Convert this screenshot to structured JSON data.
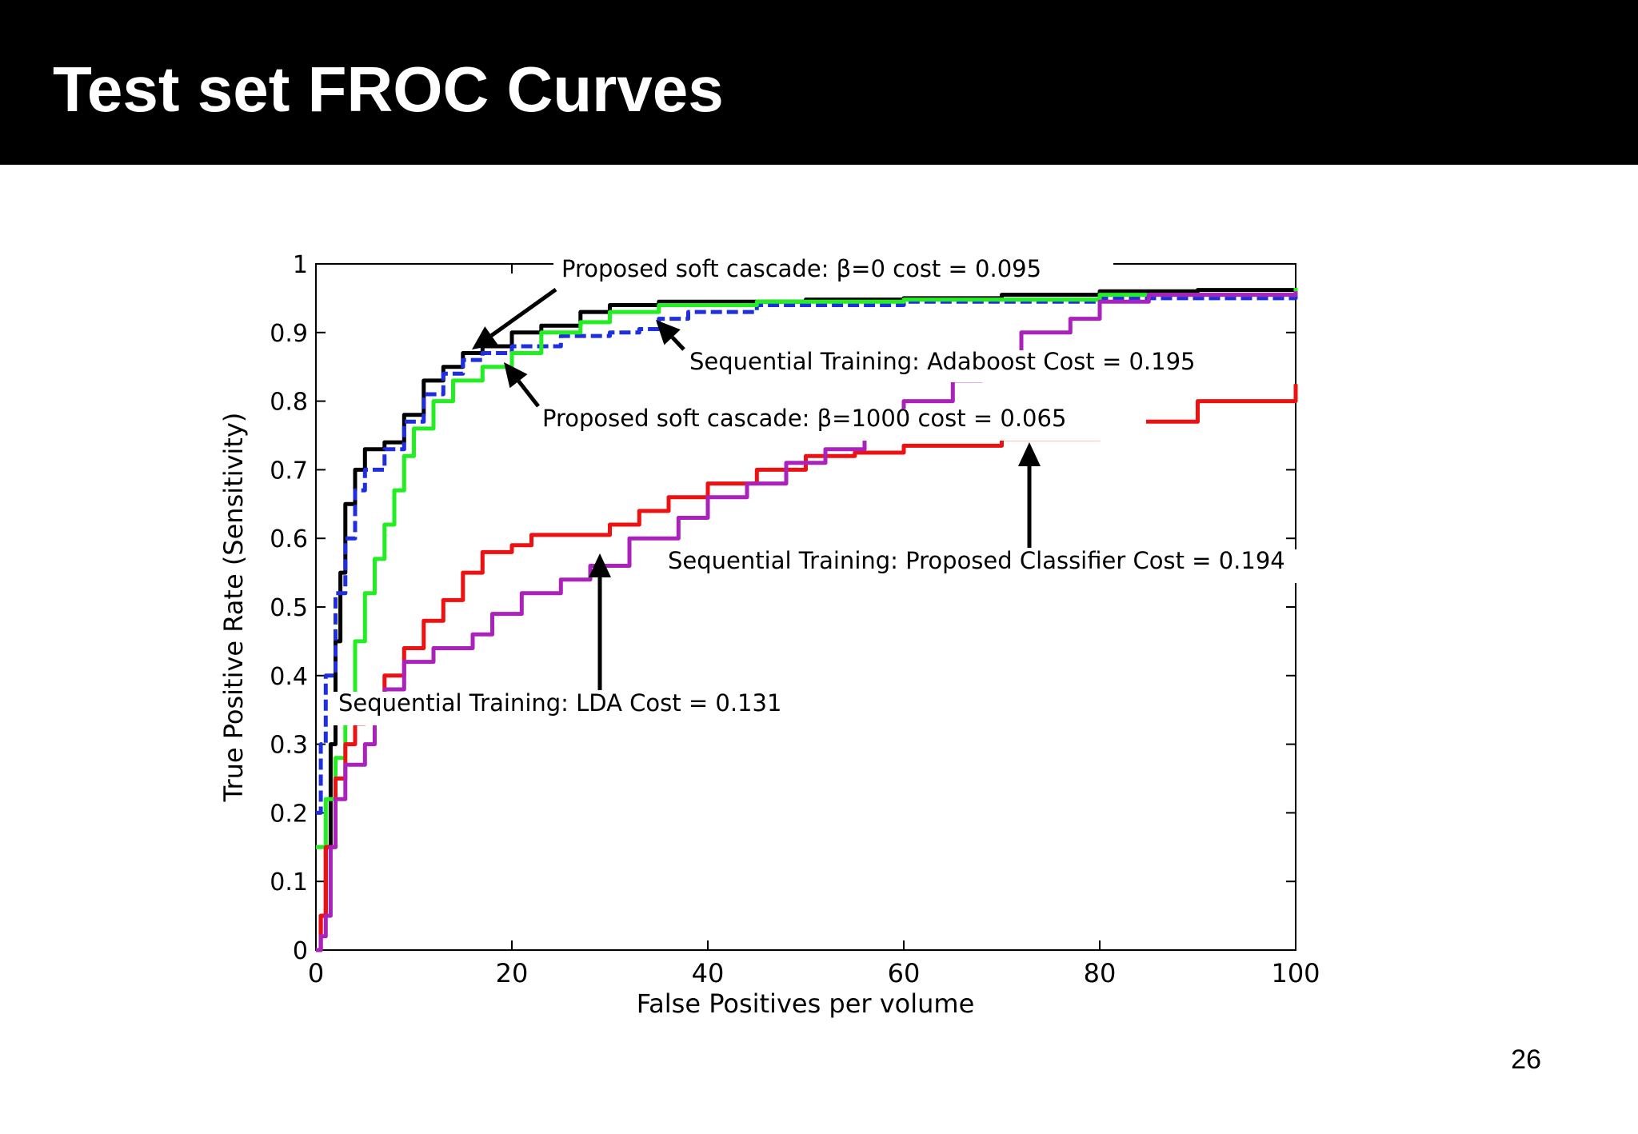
{
  "slide": {
    "title": "Test set FROC Curves",
    "page_number": "26"
  },
  "chart_data": {
    "type": "line",
    "title": "",
    "xlabel": "False Positives per volume",
    "ylabel": "True Positive Rate (Sensitivity)",
    "xlim": [
      0,
      100
    ],
    "ylim": [
      0,
      1
    ],
    "xticks": [
      0,
      20,
      40,
      60,
      80,
      100
    ],
    "yticks": [
      0,
      0.1,
      0.2,
      0.3,
      0.4,
      0.5,
      0.6,
      0.7,
      0.8,
      0.9,
      1
    ],
    "grid": false,
    "series": [
      {
        "color": "#000000",
        "dash": false,
        "points": [
          [
            0,
            0
          ],
          [
            0.5,
            0.05
          ],
          [
            1,
            0.15
          ],
          [
            1.5,
            0.3
          ],
          [
            2,
            0.45
          ],
          [
            2.5,
            0.55
          ],
          [
            3,
            0.65
          ],
          [
            4,
            0.7
          ],
          [
            5,
            0.73
          ],
          [
            7,
            0.74
          ],
          [
            9,
            0.78
          ],
          [
            11,
            0.83
          ],
          [
            13,
            0.85
          ],
          [
            15,
            0.87
          ],
          [
            17,
            0.88
          ],
          [
            20,
            0.9
          ],
          [
            23,
            0.91
          ],
          [
            27,
            0.93
          ],
          [
            30,
            0.94
          ],
          [
            35,
            0.945
          ],
          [
            40,
            0.945
          ],
          [
            50,
            0.948
          ],
          [
            60,
            0.95
          ],
          [
            70,
            0.955
          ],
          [
            80,
            0.96
          ],
          [
            90,
            0.962
          ],
          [
            100,
            0.965
          ]
        ]
      },
      {
        "color": "#1f2fe0",
        "dash": true,
        "points": [
          [
            0,
            0.2
          ],
          [
            0.5,
            0.3
          ],
          [
            1,
            0.4
          ],
          [
            2,
            0.52
          ],
          [
            3,
            0.6
          ],
          [
            4,
            0.67
          ],
          [
            5,
            0.7
          ],
          [
            7,
            0.73
          ],
          [
            9,
            0.77
          ],
          [
            11,
            0.81
          ],
          [
            13,
            0.84
          ],
          [
            15,
            0.86
          ],
          [
            17,
            0.87
          ],
          [
            20,
            0.88
          ],
          [
            25,
            0.895
          ],
          [
            30,
            0.9
          ],
          [
            33,
            0.905
          ],
          [
            35,
            0.92
          ],
          [
            38,
            0.93
          ],
          [
            45,
            0.94
          ],
          [
            60,
            0.945
          ],
          [
            80,
            0.95
          ],
          [
            100,
            0.955
          ]
        ]
      },
      {
        "color": "#22ee22",
        "dash": false,
        "points": [
          [
            0,
            0.15
          ],
          [
            1,
            0.22
          ],
          [
            2,
            0.28
          ],
          [
            3,
            0.35
          ],
          [
            4,
            0.45
          ],
          [
            5,
            0.52
          ],
          [
            6,
            0.57
          ],
          [
            7,
            0.62
          ],
          [
            8,
            0.67
          ],
          [
            9,
            0.72
          ],
          [
            10,
            0.76
          ],
          [
            12,
            0.8
          ],
          [
            14,
            0.83
          ],
          [
            17,
            0.85
          ],
          [
            20,
            0.87
          ],
          [
            23,
            0.9
          ],
          [
            27,
            0.915
          ],
          [
            30,
            0.93
          ],
          [
            35,
            0.94
          ],
          [
            45,
            0.945
          ],
          [
            60,
            0.948
          ],
          [
            80,
            0.955
          ],
          [
            100,
            0.965
          ]
        ]
      },
      {
        "color": "#ee1111",
        "dash": false,
        "points": [
          [
            0,
            0
          ],
          [
            0.5,
            0.05
          ],
          [
            1,
            0.15
          ],
          [
            2,
            0.25
          ],
          [
            3,
            0.3
          ],
          [
            4,
            0.33
          ],
          [
            5,
            0.36
          ],
          [
            7,
            0.4
          ],
          [
            9,
            0.44
          ],
          [
            11,
            0.48
          ],
          [
            13,
            0.51
          ],
          [
            15,
            0.55
          ],
          [
            17,
            0.58
          ],
          [
            20,
            0.59
          ],
          [
            22,
            0.605
          ],
          [
            27,
            0.605
          ],
          [
            30,
            0.62
          ],
          [
            33,
            0.64
          ],
          [
            36,
            0.66
          ],
          [
            40,
            0.68
          ],
          [
            45,
            0.7
          ],
          [
            50,
            0.72
          ],
          [
            55,
            0.725
          ],
          [
            60,
            0.735
          ],
          [
            70,
            0.745
          ],
          [
            80,
            0.77
          ],
          [
            90,
            0.8
          ],
          [
            100,
            0.825
          ]
        ]
      },
      {
        "color": "#aa22bb",
        "dash": false,
        "points": [
          [
            0,
            0
          ],
          [
            0.5,
            0.02
          ],
          [
            1,
            0.05
          ],
          [
            1.5,
            0.15
          ],
          [
            2,
            0.22
          ],
          [
            3,
            0.27
          ],
          [
            5,
            0.3
          ],
          [
            6,
            0.34
          ],
          [
            7,
            0.38
          ],
          [
            9,
            0.42
          ],
          [
            12,
            0.44
          ],
          [
            16,
            0.46
          ],
          [
            18,
            0.49
          ],
          [
            21,
            0.52
          ],
          [
            25,
            0.54
          ],
          [
            28,
            0.56
          ],
          [
            32,
            0.6
          ],
          [
            37,
            0.63
          ],
          [
            40,
            0.66
          ],
          [
            44,
            0.68
          ],
          [
            48,
            0.71
          ],
          [
            52,
            0.73
          ],
          [
            56,
            0.76
          ],
          [
            60,
            0.8
          ],
          [
            65,
            0.83
          ],
          [
            68,
            0.87
          ],
          [
            72,
            0.9
          ],
          [
            77,
            0.92
          ],
          [
            80,
            0.945
          ],
          [
            85,
            0.955
          ],
          [
            100,
            0.96
          ]
        ]
      }
    ],
    "annotations": [
      {
        "text": "Proposed soft cascade: β=0 cost = 0.095"
      },
      {
        "text": "Sequential Training: Adaboost Cost = 0.195"
      },
      {
        "text": "Proposed soft cascade: β=1000 cost = 0.065"
      },
      {
        "text": "Sequential Training: Proposed Classifier Cost = 0.194"
      },
      {
        "text": "Sequential Training: LDA Cost = 0.131"
      }
    ]
  }
}
